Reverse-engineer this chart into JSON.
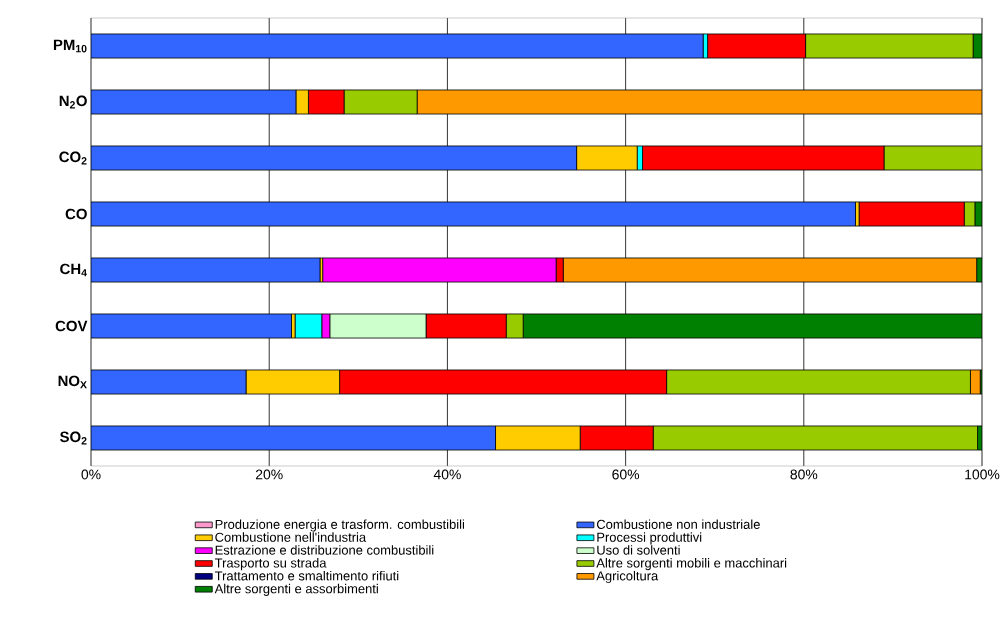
{
  "chart_data": {
    "type": "bar",
    "orientation": "horizontal",
    "stacked": true,
    "categories": [
      "PM$_{10}$",
      "N$_{2}$O",
      "CO$_{2}$",
      "CO",
      "CH$_{4}$",
      "COV",
      "NO$_{X}$",
      "SO$_{2}$"
    ],
    "series": [
      {
        "name": "Produzione energia e trasform. combustibili",
        "color": "#ff99cc",
        "values": [
          0,
          0,
          0,
          0,
          0,
          0,
          0,
          0
        ]
      },
      {
        "name": "Combustione non industriale",
        "color": "#3366ff",
        "values": [
          68.7,
          23.0,
          54.5,
          85.8,
          25.7,
          22.5,
          17.4,
          45.4
        ]
      },
      {
        "name": "Combustione nell'industria",
        "color": "#ffcc00",
        "values": [
          0,
          1.4,
          6.8,
          0.4,
          0.3,
          0.4,
          10.5,
          9.5
        ]
      },
      {
        "name": "Processi produttivi",
        "color": "#00ffff",
        "values": [
          0.5,
          0,
          0.6,
          0,
          0,
          3.0,
          0,
          0
        ]
      },
      {
        "name": "Estrazione e distribuzione combustibili",
        "color": "#ff00ff",
        "values": [
          0,
          0,
          0,
          0,
          26.2,
          0.9,
          0,
          0
        ]
      },
      {
        "name": "Uso di solventi",
        "color": "#ccffcc",
        "values": [
          0,
          0,
          0,
          0,
          0,
          10.8,
          0,
          0
        ]
      },
      {
        "name": "Trasporto su strada",
        "color": "#ff0000",
        "values": [
          11.0,
          4.0,
          27.1,
          11.8,
          0.8,
          9.0,
          36.7,
          8.2
        ]
      },
      {
        "name": "Altre sorgenti mobili e macchinari",
        "color": "#99cc00",
        "values": [
          18.8,
          8.2,
          11.0,
          1.2,
          0,
          1.9,
          34.1,
          36.4
        ]
      },
      {
        "name": "Trattamento e smaltimento rifiuti",
        "color": "#000080",
        "values": [
          0,
          0,
          0,
          0,
          0,
          0,
          0,
          0
        ]
      },
      {
        "name": "Agricoltura",
        "color": "#ff9900",
        "values": [
          0,
          63.4,
          0,
          0,
          46.4,
          0,
          1.1,
          0
        ]
      },
      {
        "name": "Altre sorgenti e assorbimenti",
        "color": "#008000",
        "values": [
          1.0,
          0,
          0,
          0.8,
          0.6,
          51.5,
          0.2,
          0.5
        ]
      }
    ],
    "xlim": [
      0,
      100
    ],
    "xticks": [
      {
        "value": 0,
        "label": "0%"
      },
      {
        "value": 20,
        "label": "20%"
      },
      {
        "value": 40,
        "label": "40%"
      },
      {
        "value": 60,
        "label": "60%"
      },
      {
        "value": 80,
        "label": "80%"
      },
      {
        "value": 100,
        "label": "100%"
      }
    ],
    "grid": "x",
    "legend": "bottom"
  }
}
